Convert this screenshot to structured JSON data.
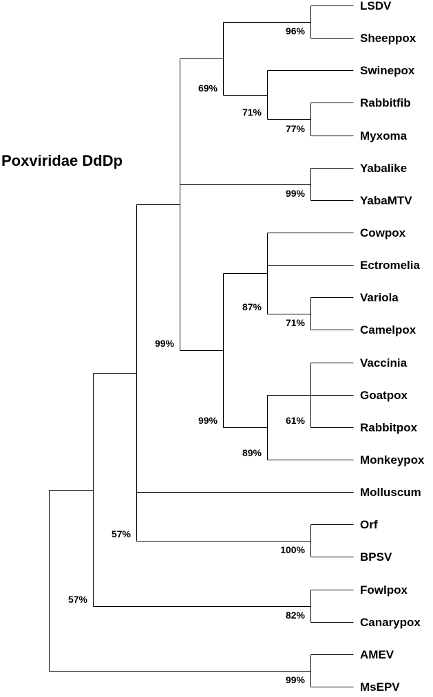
{
  "title": "Poxviridae DdDp",
  "taxa": [
    "LSDV",
    "Sheeppox",
    "Swinepox",
    "Rabbitfib",
    "Myxoma",
    "Yabalike",
    "YabaMTV",
    "Cowpox",
    "Ectromelia",
    "Variola",
    "Camelpox",
    "Vaccinia",
    "Goatpox",
    "Rabbitpox",
    "Monkeypox",
    "Molluscum",
    "Orf",
    "BPSV",
    "Fowlpox",
    "Canarypox",
    "AMEV",
    "MsEPV"
  ],
  "support": {
    "lsdv_sheeppox": "96%",
    "capri_group": "69%",
    "lepori_group": "71%",
    "rabbitfib_myxoma": "77%",
    "yaba_group": "99%",
    "chordo_core": "99%",
    "ortho_group": "99%",
    "cowpox_group": "87%",
    "variola_camelpox": "71%",
    "vaccinia_group": "89%",
    "vaccinia_triplet": "61%",
    "chordopox": "57%",
    "parapox": "100%",
    "avipox": "82%",
    "root": "57%",
    "entomopox": "99%"
  }
}
